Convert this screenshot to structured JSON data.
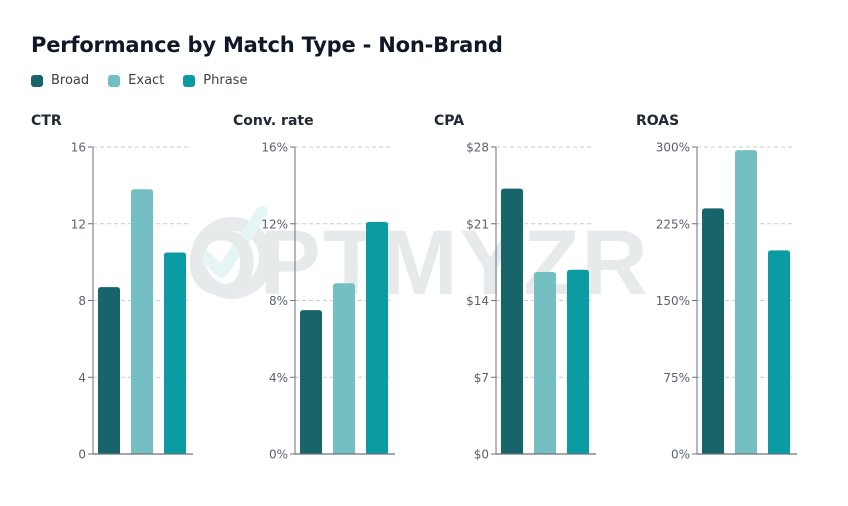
{
  "chart_title": "Performance by Match Type - Non-Brand",
  "legend": [
    {
      "label": "Broad",
      "color": "#17646a"
    },
    {
      "label": "Exact",
      "color": "#74bfc2"
    },
    {
      "label": "Phrase",
      "color": "#0b9ca3"
    }
  ],
  "watermark": {
    "text": "OPTMYZR"
  },
  "chart_data": [
    {
      "type": "bar",
      "title": "CTR",
      "categories": [
        "Broad",
        "Exact",
        "Phrase"
      ],
      "values": [
        8.7,
        13.8,
        10.5
      ],
      "ylim": [
        0,
        16
      ],
      "yticks": [
        0,
        4,
        8,
        12,
        16
      ],
      "ytick_labels": [
        "0",
        "4",
        "8",
        "12",
        "16"
      ],
      "grid": true
    },
    {
      "type": "bar",
      "title": "Conv. rate",
      "categories": [
        "Broad",
        "Exact",
        "Phrase"
      ],
      "values": [
        7.5,
        8.9,
        12.1
      ],
      "ylim": [
        0,
        16
      ],
      "yticks": [
        0,
        4,
        8,
        12,
        16
      ],
      "ytick_labels": [
        "0%",
        "4%",
        "8%",
        "12%",
        "16%"
      ],
      "grid": true
    },
    {
      "type": "bar",
      "title": "CPA",
      "categories": [
        "Broad",
        "Exact",
        "Phrase"
      ],
      "values": [
        24.2,
        16.6,
        16.8
      ],
      "ylim": [
        0,
        28
      ],
      "yticks": [
        0,
        7,
        14,
        21,
        28
      ],
      "ytick_labels": [
        "$0",
        "$7",
        "$14",
        "$21",
        "$28"
      ],
      "grid": true
    },
    {
      "type": "bar",
      "title": "ROAS",
      "categories": [
        "Broad",
        "Exact",
        "Phrase"
      ],
      "values": [
        240,
        297,
        199
      ],
      "ylim": [
        0,
        300
      ],
      "yticks": [
        0,
        75,
        150,
        225,
        300
      ],
      "ytick_labels": [
        "0%",
        "75%",
        "150%",
        "225%",
        "300%"
      ],
      "grid": true
    }
  ]
}
